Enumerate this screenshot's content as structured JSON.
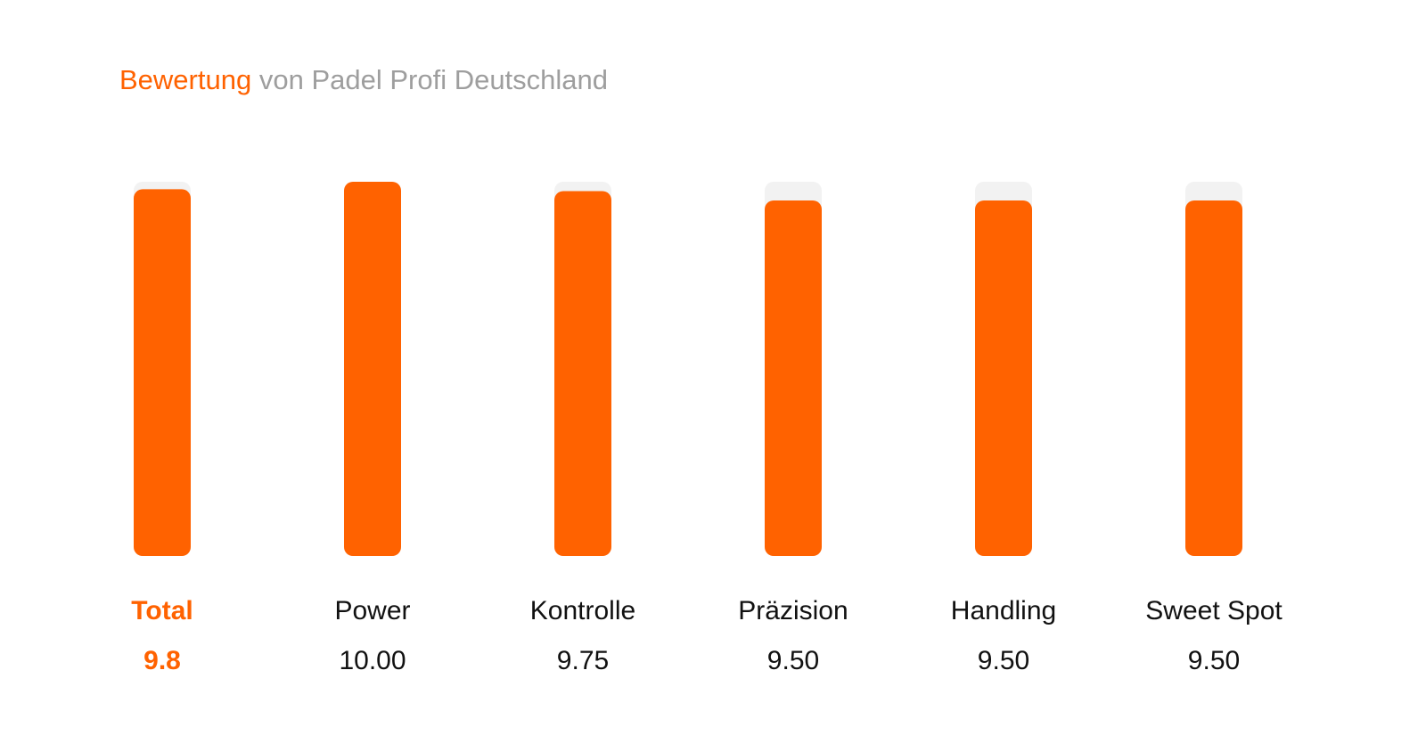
{
  "title": {
    "accent": "Bewertung",
    "rest": "von Padel Profi Deutschland"
  },
  "colors": {
    "accent": "#ff6200",
    "track": "#f2f2f2",
    "text": "#111111",
    "muted": "#9e9e9e"
  },
  "chart_data": {
    "type": "bar",
    "categories": [
      "Total",
      "Power",
      "Kontrolle",
      "Präzision",
      "Handling",
      "Sweet Spot"
    ],
    "values": [
      9.8,
      10.0,
      9.75,
      9.5,
      9.5,
      9.5
    ],
    "value_labels": [
      "9.8",
      "10.00",
      "9.75",
      "9.50",
      "9.50",
      "9.50"
    ],
    "ylim": [
      0,
      10
    ],
    "highlight_index": 0,
    "grid": false,
    "legend": "none"
  }
}
